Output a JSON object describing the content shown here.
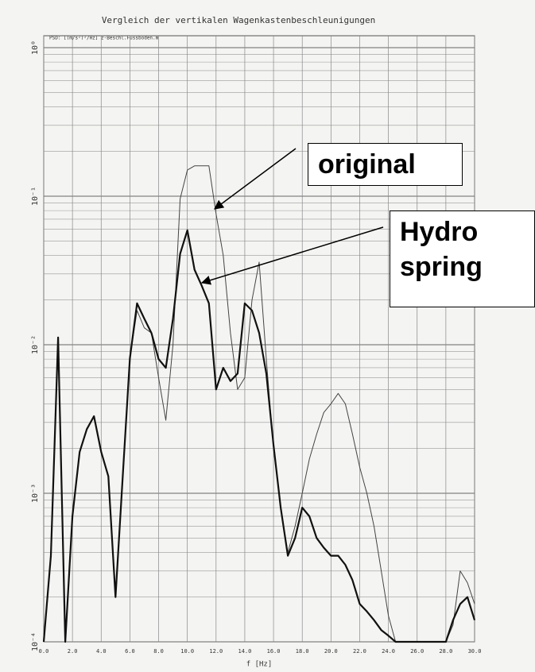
{
  "chart_data": {
    "type": "line",
    "title": "Vergleich der vertikalen Wagenkastenbeschleunigungen",
    "subtitle": "PSD: [(m/s²)²/Hz]   z-Beschl.Fussboden.m",
    "x_label": "f [Hz]",
    "yscale": "log",
    "grid": true,
    "xlim": [
      0,
      30
    ],
    "ylim": [
      0.0001,
      1
    ],
    "xticks": [
      {
        "value": 0,
        "label": "0.0"
      },
      {
        "value": 2,
        "label": "2.0"
      },
      {
        "value": 4,
        "label": "4.0"
      },
      {
        "value": 6,
        "label": "6.0"
      },
      {
        "value": 8,
        "label": "8.0"
      },
      {
        "value": 10,
        "label": "10.0"
      },
      {
        "value": 12,
        "label": "12.0"
      },
      {
        "value": 14,
        "label": "14.0"
      },
      {
        "value": 16,
        "label": "16.0"
      },
      {
        "value": 18,
        "label": "18.0"
      },
      {
        "value": 20,
        "label": "20.0"
      },
      {
        "value": 22,
        "label": "22.0"
      },
      {
        "value": 24,
        "label": "24.0"
      },
      {
        "value": 26,
        "label": "26.0"
      },
      {
        "value": 28,
        "label": "28.0"
      },
      {
        "value": 30,
        "label": "30.0"
      }
    ],
    "yticks": [
      {
        "value": 0.0001,
        "label": "10⁻⁴"
      },
      {
        "value": 0.001,
        "label": "10⁻³"
      },
      {
        "value": 0.01,
        "label": "10⁻²"
      },
      {
        "value": 0.1,
        "label": "10⁻¹"
      },
      {
        "value": 1,
        "label": "10⁰"
      }
    ],
    "x": [
      0,
      0.5,
      1,
      1.5,
      2,
      2.5,
      3,
      3.5,
      4,
      4.5,
      5,
      5.5,
      6,
      6.5,
      7,
      7.5,
      8,
      8.5,
      9,
      9.5,
      10,
      10.5,
      11,
      11.5,
      12,
      12.5,
      13,
      13.5,
      14,
      14.5,
      15,
      15.5,
      16,
      16.5,
      17,
      17.5,
      18,
      18.5,
      19,
      19.5,
      20,
      20.5,
      21,
      21.5,
      22,
      22.5,
      23,
      23.5,
      24,
      24.5,
      25,
      25.5,
      26,
      26.5,
      27,
      27.5,
      28,
      28.5,
      29,
      29.5,
      30
    ],
    "series": [
      {
        "name": "original",
        "color": "#444444",
        "values": [
          0.0001,
          0.00038,
          0.0112,
          0.0001,
          0.0007,
          0.0019,
          0.0027,
          0.0033,
          0.0019,
          0.0013,
          0.0002,
          0.0013,
          0.0081,
          0.017,
          0.013,
          0.012,
          0.006,
          0.0031,
          0.01,
          0.096,
          0.15,
          0.16,
          0.16,
          0.16,
          0.076,
          0.04,
          0.012,
          0.005,
          0.006,
          0.02,
          0.036,
          0.008,
          0.002,
          0.0008,
          0.0004,
          0.0006,
          0.001,
          0.0017,
          0.0025,
          0.0035,
          0.004,
          0.0047,
          0.004,
          0.0025,
          0.0015,
          0.001,
          0.0006,
          0.0003,
          0.00015,
          0.0001,
          0.0001,
          0.0001,
          0.0001,
          0.0001,
          0.0001,
          0.0001,
          0.0001,
          0.00013,
          0.0003,
          0.00025,
          0.00018
        ]
      },
      {
        "name": "Hydro spring",
        "color": "#111111",
        "values": [
          0.0001,
          0.00038,
          0.0112,
          0.0001,
          0.0007,
          0.0019,
          0.0027,
          0.0033,
          0.0019,
          0.0013,
          0.0002,
          0.0013,
          0.0081,
          0.019,
          0.015,
          0.012,
          0.008,
          0.007,
          0.015,
          0.041,
          0.059,
          0.032,
          0.025,
          0.019,
          0.005,
          0.007,
          0.0057,
          0.0064,
          0.019,
          0.017,
          0.012,
          0.0064,
          0.0021,
          0.0008,
          0.00038,
          0.0005,
          0.0008,
          0.0007,
          0.0005,
          0.00043,
          0.00038,
          0.00038,
          0.00033,
          0.00026,
          0.00018,
          0.00016,
          0.00014,
          0.00012,
          0.00011,
          0.0001,
          0.0001,
          0.0001,
          0.0001,
          0.0001,
          0.0001,
          0.0001,
          0.0001,
          0.00014,
          0.00018,
          0.0002,
          0.00014
        ]
      }
    ]
  }
}
